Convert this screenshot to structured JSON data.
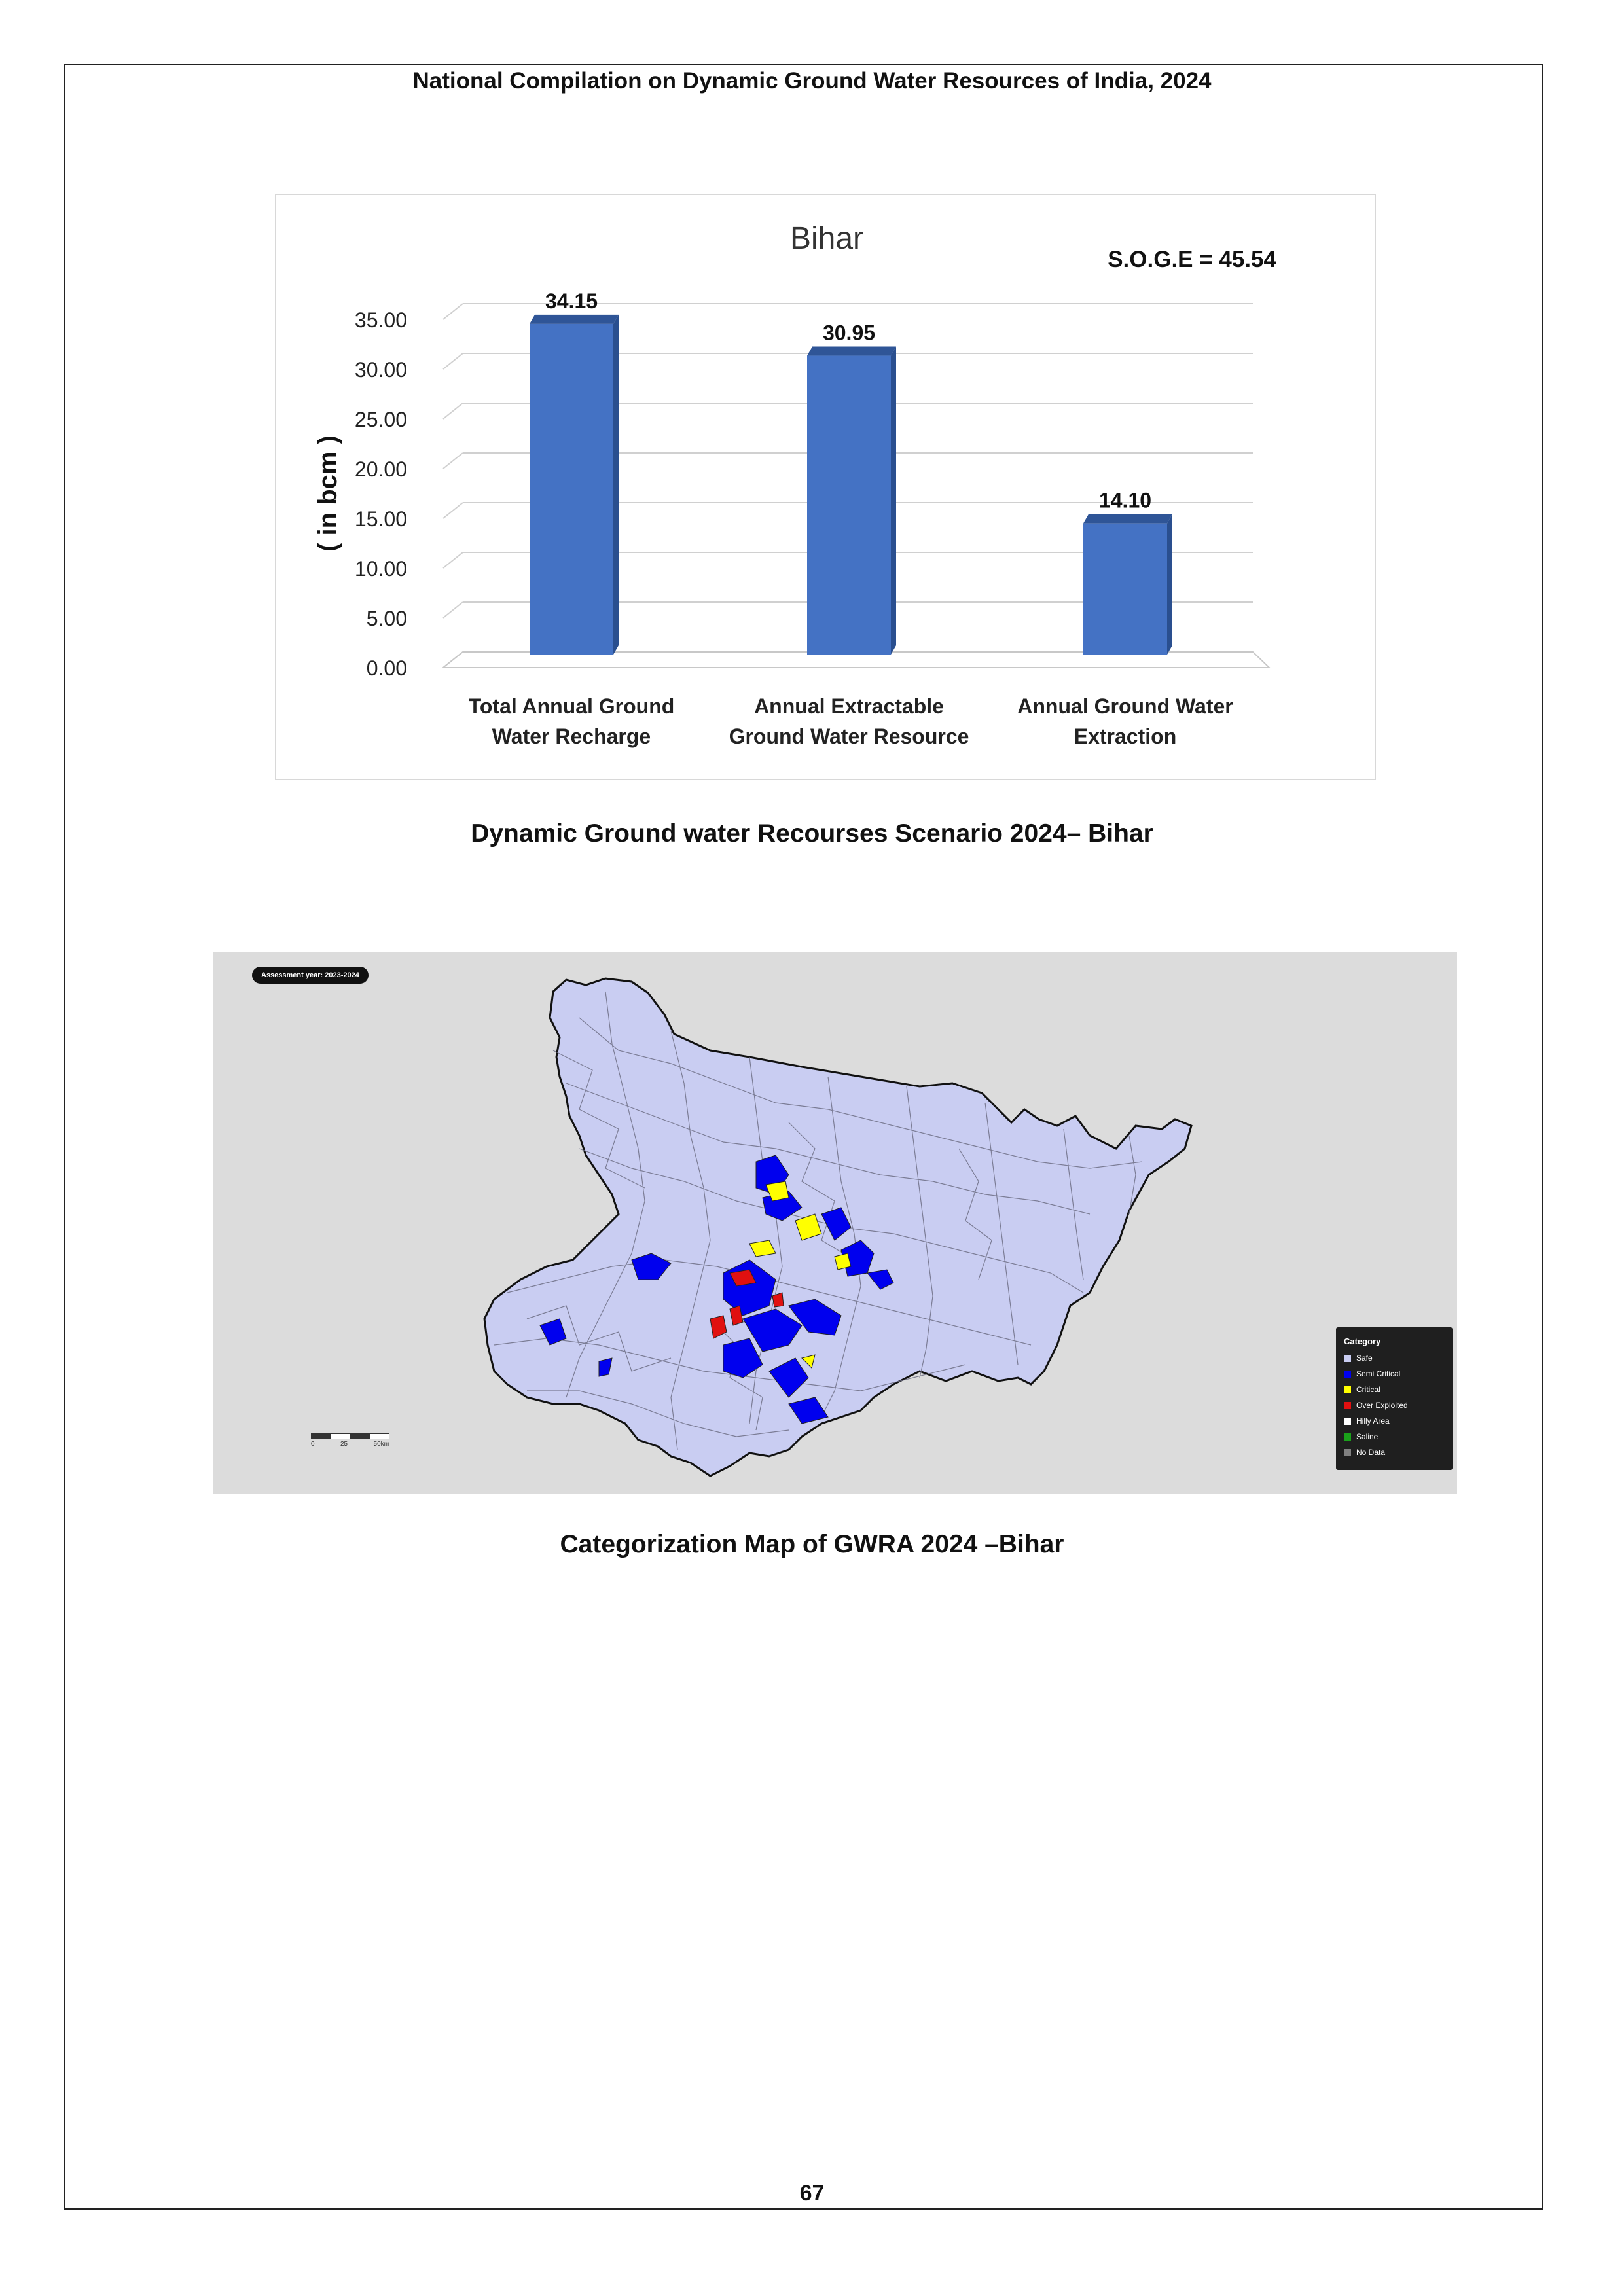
{
  "header": {
    "title": "National Compilation on Dynamic Ground Water Resources of India, 2024"
  },
  "chart_data": {
    "type": "bar",
    "title": "Bihar",
    "annotation": "S.O.G.E = 45.54",
    "ylabel": "( in bcm )",
    "xlabel": "",
    "ylim": [
      0,
      35
    ],
    "yticks": [
      "0.00",
      "5.00",
      "10.00",
      "15.00",
      "20.00",
      "25.00",
      "30.00",
      "35.00"
    ],
    "categories": [
      [
        "Total Annual  Ground",
        "Water Recharge"
      ],
      [
        "Annual Extractable",
        "Ground Water Resource"
      ],
      [
        "Annual Ground Water",
        "Extraction"
      ]
    ],
    "values": [
      34.15,
      30.95,
      14.1
    ],
    "value_labels": [
      "34.15",
      "30.95",
      "14.10"
    ],
    "colors": {
      "bar": "#4472c4",
      "bar_top": "#2f5597",
      "bar_side": "#2a4f8f"
    }
  },
  "chart_caption": "Dynamic Ground water Recourses Scenario 2024– Bihar",
  "map": {
    "assessment_year": "Assessment year: 2023-2024",
    "legend": {
      "title": "Category",
      "items": [
        {
          "label": "Safe",
          "color": "#c9cdf2"
        },
        {
          "label": "Semi Critical",
          "color": "#0000ee"
        },
        {
          "label": "Critical",
          "color": "#ffff00"
        },
        {
          "label": "Over Exploited",
          "color": "#e01010"
        },
        {
          "label": "Hilly Area",
          "color": "#ffffff"
        },
        {
          "label": "Saline",
          "color": "#1aa11a"
        },
        {
          "label": "No Data",
          "color": "#808080"
        }
      ]
    },
    "scale": {
      "labels": [
        "0",
        "25",
        "50km"
      ]
    },
    "colors": {
      "background": "#dcdcdc",
      "state_fill": "#c9cdf2",
      "outline": "#111111"
    }
  },
  "map_caption": "Categorization Map of GWRA 2024 –Bihar",
  "page_number": "67"
}
